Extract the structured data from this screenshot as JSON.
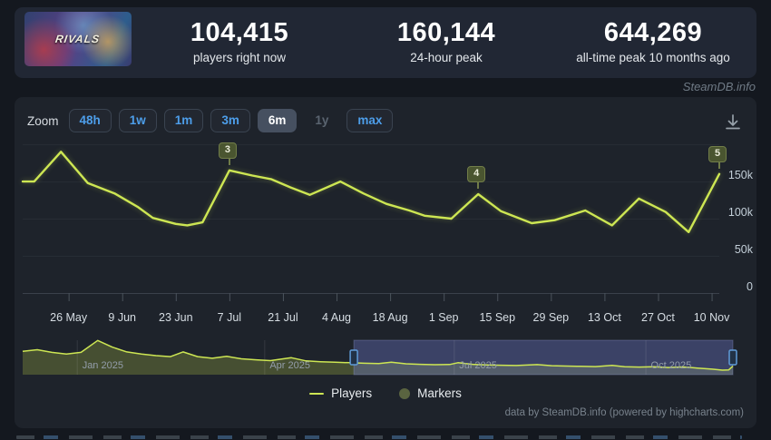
{
  "header": {
    "capsule_logo": "RIVALS",
    "stats": [
      {
        "value": "104,415",
        "label": "players right now"
      },
      {
        "value": "160,144",
        "label": "24-hour peak"
      },
      {
        "value": "644,269",
        "label": "all-time peak 10 months ago"
      }
    ]
  },
  "watermark": "SteamDB.info",
  "toolbar": {
    "zoom_label": "Zoom",
    "buttons": [
      {
        "label": "48h",
        "state": "normal"
      },
      {
        "label": "1w",
        "state": "normal"
      },
      {
        "label": "1m",
        "state": "normal"
      },
      {
        "label": "3m",
        "state": "normal"
      },
      {
        "label": "6m",
        "state": "selected"
      },
      {
        "label": "1y",
        "state": "disabled"
      },
      {
        "label": "max",
        "state": "normal"
      }
    ],
    "download_icon": "download-icon"
  },
  "chart_data": {
    "type": "line",
    "title": "",
    "xlabel": "",
    "ylabel": "",
    "ylim": [
      0,
      205000
    ],
    "grid": "horizontal",
    "legend_position": "bottom-center",
    "series": [
      {
        "name": "Players",
        "color": "#cde653",
        "points": [
          [
            "2025-05-14",
            150000
          ],
          [
            "2025-05-17",
            150000
          ],
          [
            "2025-05-24",
            190000
          ],
          [
            "2025-05-31",
            148000
          ],
          [
            "2025-06-07",
            134000
          ],
          [
            "2025-06-13",
            116000
          ],
          [
            "2025-06-17",
            101000
          ],
          [
            "2025-06-23",
            93000
          ],
          [
            "2025-06-26",
            91000
          ],
          [
            "2025-06-30",
            95000
          ],
          [
            "2025-07-07",
            165000
          ],
          [
            "2025-07-13",
            158000
          ],
          [
            "2025-07-18",
            153000
          ],
          [
            "2025-07-23",
            142000
          ],
          [
            "2025-07-28",
            132000
          ],
          [
            "2025-08-05",
            150000
          ],
          [
            "2025-08-11",
            134000
          ],
          [
            "2025-08-17",
            120000
          ],
          [
            "2025-08-23",
            111000
          ],
          [
            "2025-08-27",
            104000
          ],
          [
            "2025-09-03",
            100000
          ],
          [
            "2025-09-10",
            133000
          ],
          [
            "2025-09-16",
            110000
          ],
          [
            "2025-09-24",
            94000
          ],
          [
            "2025-09-30",
            98000
          ],
          [
            "2025-10-08",
            111000
          ],
          [
            "2025-10-15",
            91000
          ],
          [
            "2025-10-22",
            127000
          ],
          [
            "2025-10-29",
            109000
          ],
          [
            "2025-11-04",
            82000
          ],
          [
            "2025-11-12",
            160144
          ]
        ]
      }
    ],
    "markers": [
      {
        "label": "3",
        "date": "2025-07-07",
        "players": 165000
      },
      {
        "label": "4",
        "date": "2025-09-10",
        "players": 133000
      },
      {
        "label": "5",
        "date": "2025-11-12",
        "players": 160144
      }
    ],
    "x_range": [
      "2025-05-14",
      "2025-11-12"
    ],
    "xticks": [
      {
        "label": "26 May",
        "date": "2025-05-26"
      },
      {
        "label": "9 Jun",
        "date": "2025-06-09"
      },
      {
        "label": "23 Jun",
        "date": "2025-06-23"
      },
      {
        "label": "7 Jul",
        "date": "2025-07-07"
      },
      {
        "label": "21 Jul",
        "date": "2025-07-21"
      },
      {
        "label": "4 Aug",
        "date": "2025-08-04"
      },
      {
        "label": "18 Aug",
        "date": "2025-08-18"
      },
      {
        "label": "1 Sep",
        "date": "2025-09-01"
      },
      {
        "label": "15 Sep",
        "date": "2025-09-15"
      },
      {
        "label": "29 Sep",
        "date": "2025-09-29"
      },
      {
        "label": "13 Oct",
        "date": "2025-10-13"
      },
      {
        "label": "27 Oct",
        "date": "2025-10-27"
      },
      {
        "label": "10 Nov",
        "date": "2025-11-10"
      }
    ],
    "yticks": [
      {
        "label": "0",
        "value": 0
      },
      {
        "label": "50k",
        "value": 50000
      },
      {
        "label": "100k",
        "value": 100000
      },
      {
        "label": "150k",
        "value": 150000
      }
    ],
    "extra_gridlines": [
      200000
    ],
    "legend": [
      {
        "label": "Players",
        "swatch": "line",
        "color": "#cde653"
      },
      {
        "label": "Markers",
        "swatch": "circle",
        "color": "#5a6440"
      }
    ],
    "navigator": {
      "x_range": [
        "2024-12-06",
        "2025-11-12"
      ],
      "selected_range": [
        "2025-05-14",
        "2025-11-12"
      ],
      "ylim": [
        0,
        650000
      ],
      "month_labels": [
        {
          "label": "Jan 2025",
          "date": "2025-01-01"
        },
        {
          "label": "Apr 2025",
          "date": "2025-04-01"
        },
        {
          "label": "Jul 2025",
          "date": "2025-07-01"
        },
        {
          "label": "Oct 2025",
          "date": "2025-10-01"
        }
      ],
      "points": [
        [
          "2024-12-06",
          440000
        ],
        [
          "2024-12-13",
          470000
        ],
        [
          "2024-12-20",
          420000
        ],
        [
          "2024-12-27",
          390000
        ],
        [
          "2025-01-03",
          420000
        ],
        [
          "2025-01-11",
          644269
        ],
        [
          "2025-01-18",
          520000
        ],
        [
          "2025-01-25",
          430000
        ],
        [
          "2025-02-01",
          390000
        ],
        [
          "2025-02-08",
          360000
        ],
        [
          "2025-02-15",
          340000
        ],
        [
          "2025-02-21",
          430000
        ],
        [
          "2025-02-28",
          340000
        ],
        [
          "2025-03-07",
          310000
        ],
        [
          "2025-03-14",
          345000
        ],
        [
          "2025-03-21",
          300000
        ],
        [
          "2025-03-28",
          280000
        ],
        [
          "2025-04-04",
          265000
        ],
        [
          "2025-04-14",
          320000
        ],
        [
          "2025-04-21",
          260000
        ],
        [
          "2025-04-28",
          245000
        ],
        [
          "2025-05-05",
          235000
        ],
        [
          "2025-05-12",
          225000
        ],
        [
          "2025-05-19",
          215000
        ],
        [
          "2025-05-26",
          210000
        ],
        [
          "2025-06-01",
          235000
        ],
        [
          "2025-06-08",
          205000
        ],
        [
          "2025-06-15",
          195000
        ],
        [
          "2025-06-22",
          188000
        ],
        [
          "2025-06-29",
          192000
        ],
        [
          "2025-07-03",
          225000
        ],
        [
          "2025-07-10",
          195000
        ],
        [
          "2025-07-17",
          185000
        ],
        [
          "2025-07-24",
          178000
        ],
        [
          "2025-07-31",
          172000
        ],
        [
          "2025-08-10",
          190000
        ],
        [
          "2025-08-17",
          170000
        ],
        [
          "2025-08-24",
          163000
        ],
        [
          "2025-08-31",
          158000
        ],
        [
          "2025-09-07",
          152000
        ],
        [
          "2025-09-15",
          175000
        ],
        [
          "2025-09-21",
          148000
        ],
        [
          "2025-09-28",
          143000
        ],
        [
          "2025-10-05",
          150000
        ],
        [
          "2025-10-12",
          135000
        ],
        [
          "2025-10-19",
          145000
        ],
        [
          "2025-10-26",
          125000
        ],
        [
          "2025-11-02",
          105000
        ],
        [
          "2025-11-07",
          85000
        ],
        [
          "2025-11-10",
          90000
        ],
        [
          "2025-11-12",
          160144
        ]
      ]
    }
  },
  "footer": {
    "credit": "data by SteamDB.info (powered by highcharts.com)"
  }
}
